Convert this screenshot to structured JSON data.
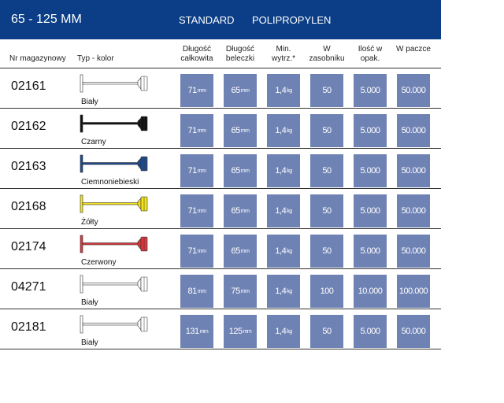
{
  "header": {
    "title": "65 - 125 MM",
    "standard": "STANDARD",
    "material": "POLIPROPYLEN",
    "accent": "#0b3e86"
  },
  "columns": [
    "Nr magazynowy",
    "Typ - kolor",
    "Długość całkowita",
    "Długość beleczki",
    "Min. wytrz.*",
    "W zasobniku",
    "Ilość w opak.",
    "W paczce"
  ],
  "rows": [
    {
      "nr": "02161",
      "color_name": "Biały",
      "color": "#ffffff",
      "total": "71",
      "bar": "65",
      "strength": "1,4",
      "magazine": "50",
      "pack": "5.000",
      "carton": "50.000"
    },
    {
      "nr": "02162",
      "color_name": "Czarny",
      "color": "#111111",
      "total": "71",
      "bar": "65",
      "strength": "1,4",
      "magazine": "50",
      "pack": "5.000",
      "carton": "50.000"
    },
    {
      "nr": "02163",
      "color_name": "Ciemnoniebieski",
      "color": "#1d4a8c",
      "total": "71",
      "bar": "65",
      "strength": "1,4",
      "magazine": "50",
      "pack": "5.000",
      "carton": "50.000"
    },
    {
      "nr": "02168",
      "color_name": "Żółty",
      "color": "#f2e21c",
      "total": "71",
      "bar": "65",
      "strength": "1,4",
      "magazine": "50",
      "pack": "5.000",
      "carton": "50.000"
    },
    {
      "nr": "02174",
      "color_name": "Czerwony",
      "color": "#d9383e",
      "total": "71",
      "bar": "65",
      "strength": "1,4",
      "magazine": "50",
      "pack": "5.000",
      "carton": "50.000"
    },
    {
      "nr": "04271",
      "color_name": "Biały",
      "color": "#ffffff",
      "total": "81",
      "bar": "75",
      "strength": "1,4",
      "magazine": "100",
      "pack": "10.000",
      "carton": "100.000"
    },
    {
      "nr": "02181",
      "color_name": "Biały",
      "color": "#ffffff",
      "total": "131",
      "bar": "125",
      "strength": "1,4",
      "magazine": "50",
      "pack": "5.000",
      "carton": "50.000"
    }
  ],
  "units": {
    "mm": "mm",
    "kg": "kg"
  }
}
